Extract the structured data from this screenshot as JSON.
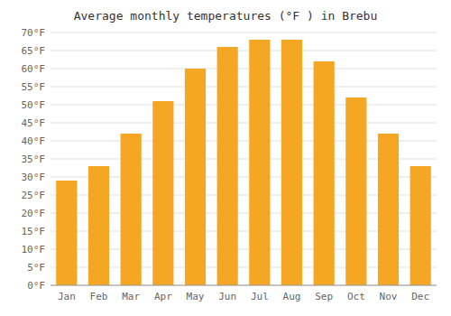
{
  "chart_data": {
    "type": "bar",
    "title": "Average monthly temperatures (°F ) in Brebu",
    "categories": [
      "Jan",
      "Feb",
      "Mar",
      "Apr",
      "May",
      "Jun",
      "Jul",
      "Aug",
      "Sep",
      "Oct",
      "Nov",
      "Dec"
    ],
    "values": [
      29,
      33,
      42,
      51,
      60,
      66,
      68,
      68,
      62,
      52,
      42,
      33
    ],
    "color": "#F5A623",
    "ylim": [
      0,
      70
    ],
    "yticks": [
      {
        "value": 0,
        "label": "0°F"
      },
      {
        "value": 5,
        "label": "5°F"
      },
      {
        "value": 10,
        "label": "10°F"
      },
      {
        "value": 15,
        "label": "15°F"
      },
      {
        "value": 20,
        "label": "20°F"
      },
      {
        "value": 25,
        "label": "25°F"
      },
      {
        "value": 30,
        "label": "30°F"
      },
      {
        "value": 35,
        "label": "35°F"
      },
      {
        "value": 40,
        "label": "40°F"
      },
      {
        "value": 45,
        "label": "45°F"
      },
      {
        "value": 50,
        "label": "50°F"
      },
      {
        "value": 55,
        "label": "55°F"
      },
      {
        "value": 60,
        "label": "60°F"
      },
      {
        "value": 65,
        "label": "65°F"
      },
      {
        "value": 70,
        "label": "70°F"
      }
    ],
    "grid": true
  }
}
